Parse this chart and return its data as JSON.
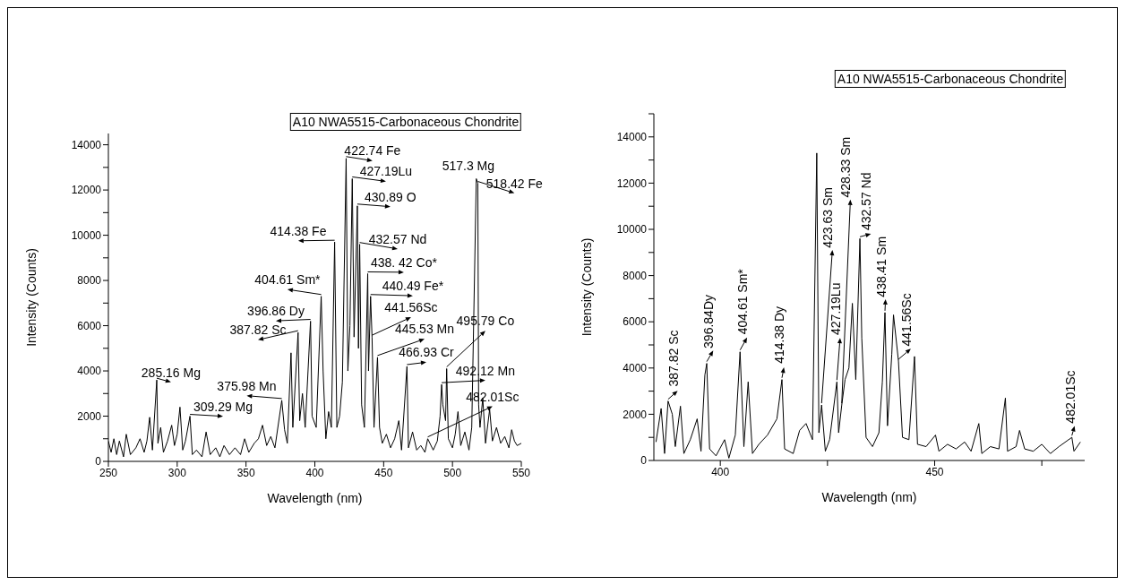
{
  "chart_data": [
    {
      "type": "line",
      "title": "A10 NWA5515-Carbonaceous Chondrite",
      "xlabel": "Wavelength (nm)",
      "ylabel": "Intensity (Counts)",
      "x": [
        250,
        252,
        254,
        256,
        258,
        261,
        263,
        266,
        270,
        273,
        276,
        278,
        280,
        282,
        285.16,
        286,
        288,
        290,
        293,
        296,
        298,
        300,
        302,
        304,
        306,
        309.29,
        311,
        314,
        318,
        321,
        324,
        328,
        331,
        334,
        338,
        342,
        346,
        349,
        352,
        356,
        359,
        362,
        365,
        368,
        371,
        375.98,
        378,
        380,
        382.7,
        384,
        387.82,
        389,
        391,
        393,
        396.86,
        398,
        401,
        404.61,
        406,
        408,
        410,
        412,
        414.38,
        416,
        418,
        420,
        422.74,
        424,
        425.5,
        427.19,
        428.5,
        430.89,
        431.7,
        432.57,
        434,
        436,
        438.42,
        439,
        440.49,
        441.56,
        443,
        445.53,
        447,
        449,
        452,
        455,
        458,
        461,
        463,
        466.93,
        468,
        471,
        474,
        477,
        480,
        482.01,
        486,
        489,
        491,
        492.12,
        493,
        495,
        495.79,
        497,
        500,
        502,
        504,
        506,
        509,
        512,
        514,
        517.3,
        518.42,
        519,
        520,
        522,
        524,
        527,
        529,
        532,
        535,
        538,
        541,
        543,
        545,
        547,
        550
      ],
      "series": [
        {
          "color": "#000000",
          "values": [
            900,
            400,
            1000,
            300,
            900,
            200,
            1200,
            300,
            600,
            1000,
            400,
            900,
            1950,
            500,
            3600,
            800,
            1500,
            400,
            900,
            1600,
            700,
            1200,
            2400,
            500,
            900,
            2000,
            300,
            500,
            200,
            1300,
            300,
            600,
            200,
            700,
            300,
            600,
            300,
            1000,
            400,
            800,
            1000,
            1600,
            700,
            1100,
            600,
            2700,
            1400,
            800,
            4800,
            1500,
            5700,
            1800,
            3000,
            1500,
            6200,
            2000,
            1500,
            7300,
            4000,
            1000,
            2200,
            1500,
            9700,
            1500,
            2000,
            3500,
            13400,
            4000,
            6000,
            12500,
            5500,
            11300,
            5000,
            9600,
            2500,
            1500,
            8300,
            4000,
            7300,
            5500,
            1500,
            4600,
            1500,
            800,
            1200,
            600,
            1000,
            1800,
            500,
            4200,
            600,
            1300,
            500,
            700,
            400,
            1000,
            500,
            900,
            2000,
            3400,
            2500,
            1800,
            4100,
            1000,
            600,
            1200,
            2200,
            700,
            1300,
            500,
            1500,
            12500,
            12300,
            2500,
            1500,
            2800,
            800,
            2300,
            900,
            1500,
            800,
            1100,
            600,
            1400,
            900,
            700,
            800
          ]
        }
      ],
      "xlim": [
        250,
        550
      ],
      "xticks": [
        250,
        300,
        350,
        400,
        450,
        500,
        550
      ],
      "ylim": [
        0,
        14500
      ],
      "yticks": [
        0,
        {
          "value": 1000,
          "label": null
        },
        2000,
        {
          "value": 3000,
          "label": null
        },
        4000,
        {
          "value": 5000,
          "label": null
        },
        6000,
        {
          "value": 7000,
          "label": null
        },
        8000,
        {
          "value": 9000,
          "label": null
        },
        10000,
        {
          "value": 11000,
          "label": null
        },
        12000,
        {
          "value": 13000,
          "label": null
        },
        14000
      ],
      "annotations": [
        {
          "text": "422.74 Fe",
          "x": 422.74,
          "y": 13400
        },
        {
          "text": "427.19Lu",
          "x": 427.19,
          "y": 12500
        },
        {
          "text": "517.3 Mg",
          "x": 517.3,
          "y": 12500
        },
        {
          "text": "518.42 Fe",
          "x": 518.42,
          "y": 12300
        },
        {
          "text": "430.89 O",
          "x": 430.89,
          "y": 11300
        },
        {
          "text": "414.38 Fe",
          "x": 414.38,
          "y": 9700
        },
        {
          "text": "432.57 Nd",
          "x": 432.57,
          "y": 9600
        },
        {
          "text": "438. 42 Co*",
          "x": 438.42,
          "y": 8300
        },
        {
          "text": "404.61 Sm*",
          "x": 404.61,
          "y": 7300
        },
        {
          "text": "440.49 Fe*",
          "x": 440.49,
          "y": 7300
        },
        {
          "text": "396.86  Dy",
          "x": 396.86,
          "y": 6200
        },
        {
          "text": "441.56Sc",
          "x": 441.56,
          "y": 5500
        },
        {
          "text": "387.82 Sc",
          "x": 387.82,
          "y": 5700
        },
        {
          "text": "445.53 Mn",
          "x": 445.53,
          "y": 4600
        },
        {
          "text": "495.79 Co",
          "x": 495.79,
          "y": 4100
        },
        {
          "text": "466.93 Cr",
          "x": 466.93,
          "y": 4200
        },
        {
          "text": "285.16 Mg",
          "x": 285.16,
          "y": 3600
        },
        {
          "text": "492.12 Mn",
          "x": 492.12,
          "y": 3400
        },
        {
          "text": "375.98 Mn",
          "x": 375.98,
          "y": 2700
        },
        {
          "text": "309.29 Mg",
          "x": 309.29,
          "y": 2000
        },
        {
          "text": "482.01Sc",
          "x": 482.01,
          "y": 1000
        }
      ]
    },
    {
      "type": "line",
      "title": "A10 NWA5515-Carbonaceous Chondrite",
      "xlabel": "Wavelength (nm)",
      "ylabel": "Intensity (Counts)",
      "x": [
        385,
        386.2,
        387,
        387.82,
        388.8,
        389.5,
        390.7,
        391.5,
        393,
        394.6,
        395.5,
        396.4,
        396.84,
        397.5,
        399,
        401,
        402,
        403.5,
        404.61,
        405.5,
        406.5,
        407.5,
        409,
        411,
        413.2,
        414.38,
        415,
        417,
        418.5,
        420,
        421.5,
        422.5,
        423,
        423.63,
        424.5,
        425.5,
        427.19,
        427.6,
        428.33,
        429.1,
        430,
        430.8,
        431.6,
        432.57,
        433,
        434,
        435.5,
        437,
        437.8,
        438.41,
        439,
        440,
        440.4,
        441.56,
        442.5,
        444,
        445.3,
        446,
        448,
        450.2,
        451,
        453,
        455,
        457,
        458.5,
        460.3,
        461,
        463,
        465,
        466.5,
        467,
        469,
        469.8,
        471,
        473,
        475,
        477,
        479,
        482.01,
        482.5,
        484
      ],
      "series": [
        {
          "color": "#000000",
          "values": [
            800,
            2250,
            300,
            2570,
            2000,
            600,
            2350,
            300,
            900,
            1800,
            400,
            3700,
            4200,
            500,
            200,
            900,
            100,
            1100,
            4700,
            600,
            3400,
            300,
            700,
            1100,
            1800,
            3500,
            500,
            300,
            1300,
            1600,
            900,
            13300,
            1200,
            2400,
            400,
            900,
            3400,
            1200,
            2400,
            3500,
            4000,
            6800,
            3500,
            9600,
            5300,
            1000,
            600,
            1200,
            3400,
            6400,
            1500,
            4600,
            6300,
            4300,
            1000,
            900,
            4500,
            700,
            600,
            1100,
            400,
            700,
            500,
            800,
            400,
            1600,
            300,
            600,
            500,
            2700,
            400,
            600,
            1300,
            500,
            400,
            700,
            300,
            600,
            1000,
            400,
            800
          ]
        }
      ],
      "xlim": [
        384.5,
        485
      ],
      "xticks": [
        400,
        {
          "value": 425,
          "label": null
        },
        450,
        {
          "value": 475,
          "label": null
        }
      ],
      "ylim": [
        0,
        15000
      ],
      "yticks": [
        0,
        {
          "value": 1000,
          "label": null
        },
        2000,
        {
          "value": 3000,
          "label": null
        },
        4000,
        {
          "value": 5000,
          "label": null
        },
        6000,
        {
          "value": 7000,
          "label": null
        },
        8000,
        {
          "value": 9000,
          "label": null
        },
        10000,
        {
          "value": 11000,
          "label": null
        },
        12000,
        {
          "value": 13000,
          "label": null
        },
        14000,
        {
          "value": 15000,
          "label": null
        }
      ],
      "annotations": [
        {
          "text": "387.82 Sc",
          "x": 387.82,
          "y": 2570
        },
        {
          "text": "396.84Dy",
          "x": 396.84,
          "y": 4200
        },
        {
          "text": "404.61 Sm*",
          "x": 404.61,
          "y": 4700
        },
        {
          "text": "414.38 Dy",
          "x": 414.38,
          "y": 3500
        },
        {
          "text": "423.63 Sm",
          "x": 423.63,
          "y": 2400
        },
        {
          "text": "427.19Lu",
          "x": 427.19,
          "y": 3400
        },
        {
          "text": "428.33 Sm",
          "x": 428.33,
          "y": 2400
        },
        {
          "text": "432.57 Nd",
          "x": 432.57,
          "y": 9600
        },
        {
          "text": "438.41 Sm",
          "x": 438.41,
          "y": 6400
        },
        {
          "text": "441.56Sc",
          "x": 441.56,
          "y": 4300
        },
        {
          "text": "482.01Sc",
          "x": 482.01,
          "y": 1000
        }
      ]
    }
  ]
}
